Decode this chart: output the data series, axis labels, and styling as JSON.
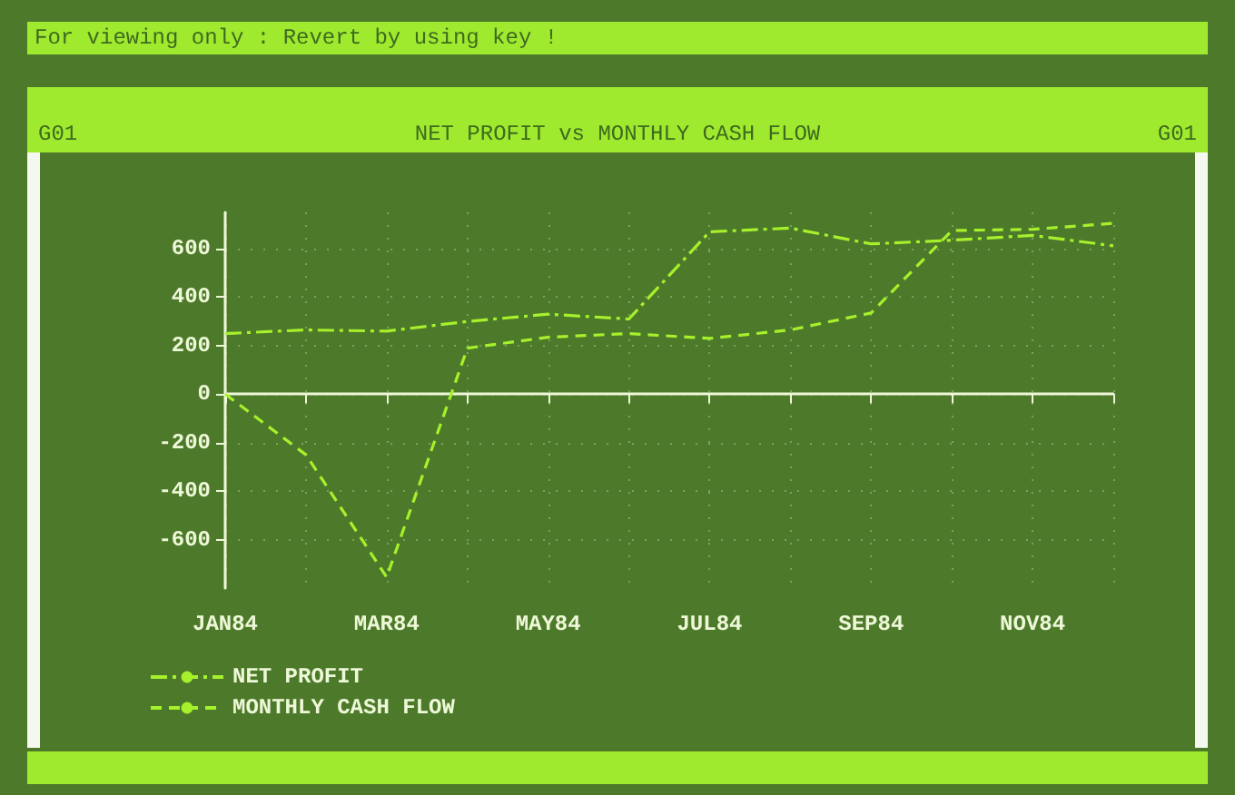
{
  "chart_data": {
    "type": "line",
    "title": "NET PROFIT vs MONTHLY CASH FLOW",
    "annotations": [
      "For viewing only : Revert by using key !",
      "G01",
      "G01"
    ],
    "categories": [
      "JAN84",
      null,
      "MAR84",
      null,
      "MAY84",
      null,
      "JUL84",
      null,
      "SEP84",
      null,
      "NOV84",
      null
    ],
    "series": [
      {
        "name": "NET PROFIT",
        "color": "#a6f02c",
        "line_style": "dashdot",
        "values": [
          250,
          265,
          260,
          300,
          330,
          310,
          670,
          685,
          620,
          635,
          655,
          612
        ]
      },
      {
        "name": "MONTHLY CASH FLOW",
        "color": "#a6f02c",
        "line_style": "dashed",
        "values": [
          0,
          -250,
          -755,
          190,
          235,
          250,
          230,
          265,
          335,
          675,
          680,
          705
        ]
      }
    ],
    "ylim": [
      -800,
      750
    ],
    "yticks": [
      -600,
      -400,
      -200,
      0,
      200,
      400,
      600
    ],
    "grid": true,
    "legend": "bottom left",
    "marker": "none"
  }
}
